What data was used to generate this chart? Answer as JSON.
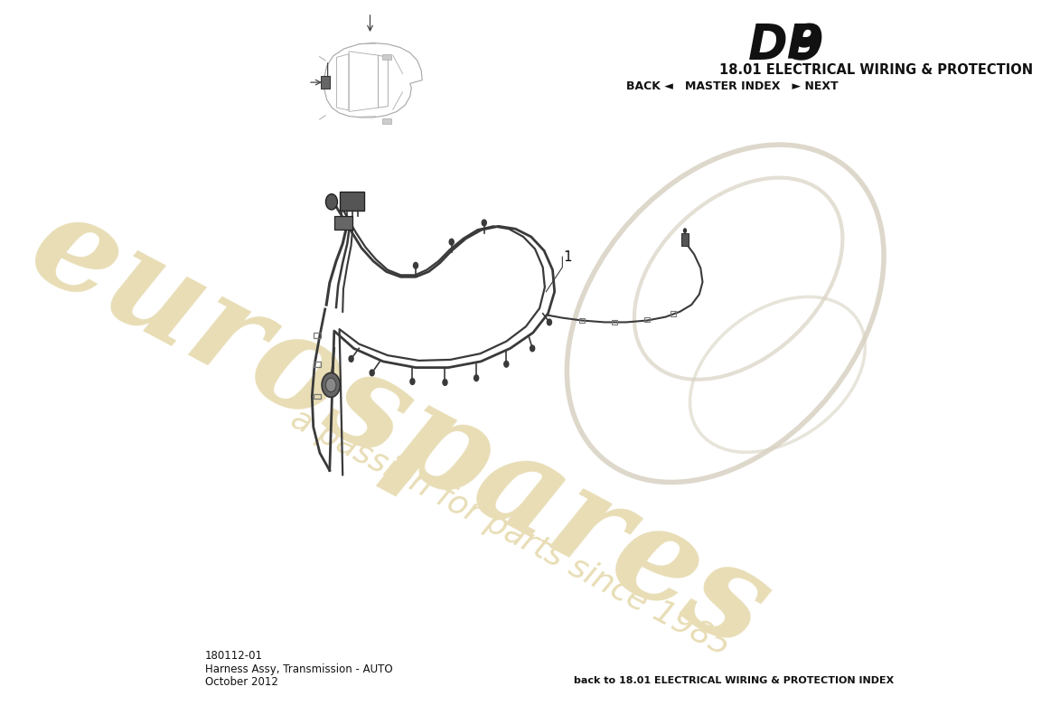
{
  "title_db9_b": "DB",
  "title_db9_n": "9",
  "title_section": "18.01 ELECTRICAL WIRING & PROTECTION",
  "nav_text": "BACK ◄   MASTER INDEX   ► NEXT",
  "part_number": "180112-01",
  "part_name": "Harness Assy, Transmission - AUTO",
  "date": "October 2012",
  "footer_right": "back to 18.01 ELECTRICAL WIRING & PROTECTION INDEX",
  "label_1": "1",
  "bg_color": "#ffffff",
  "line_color": "#3a3a3a",
  "watermark_text1": "eurospares",
  "watermark_text2": "a passion for parts since 1985",
  "watermark_color": "#e8ddb5",
  "wing_color": "#d8d2c2"
}
